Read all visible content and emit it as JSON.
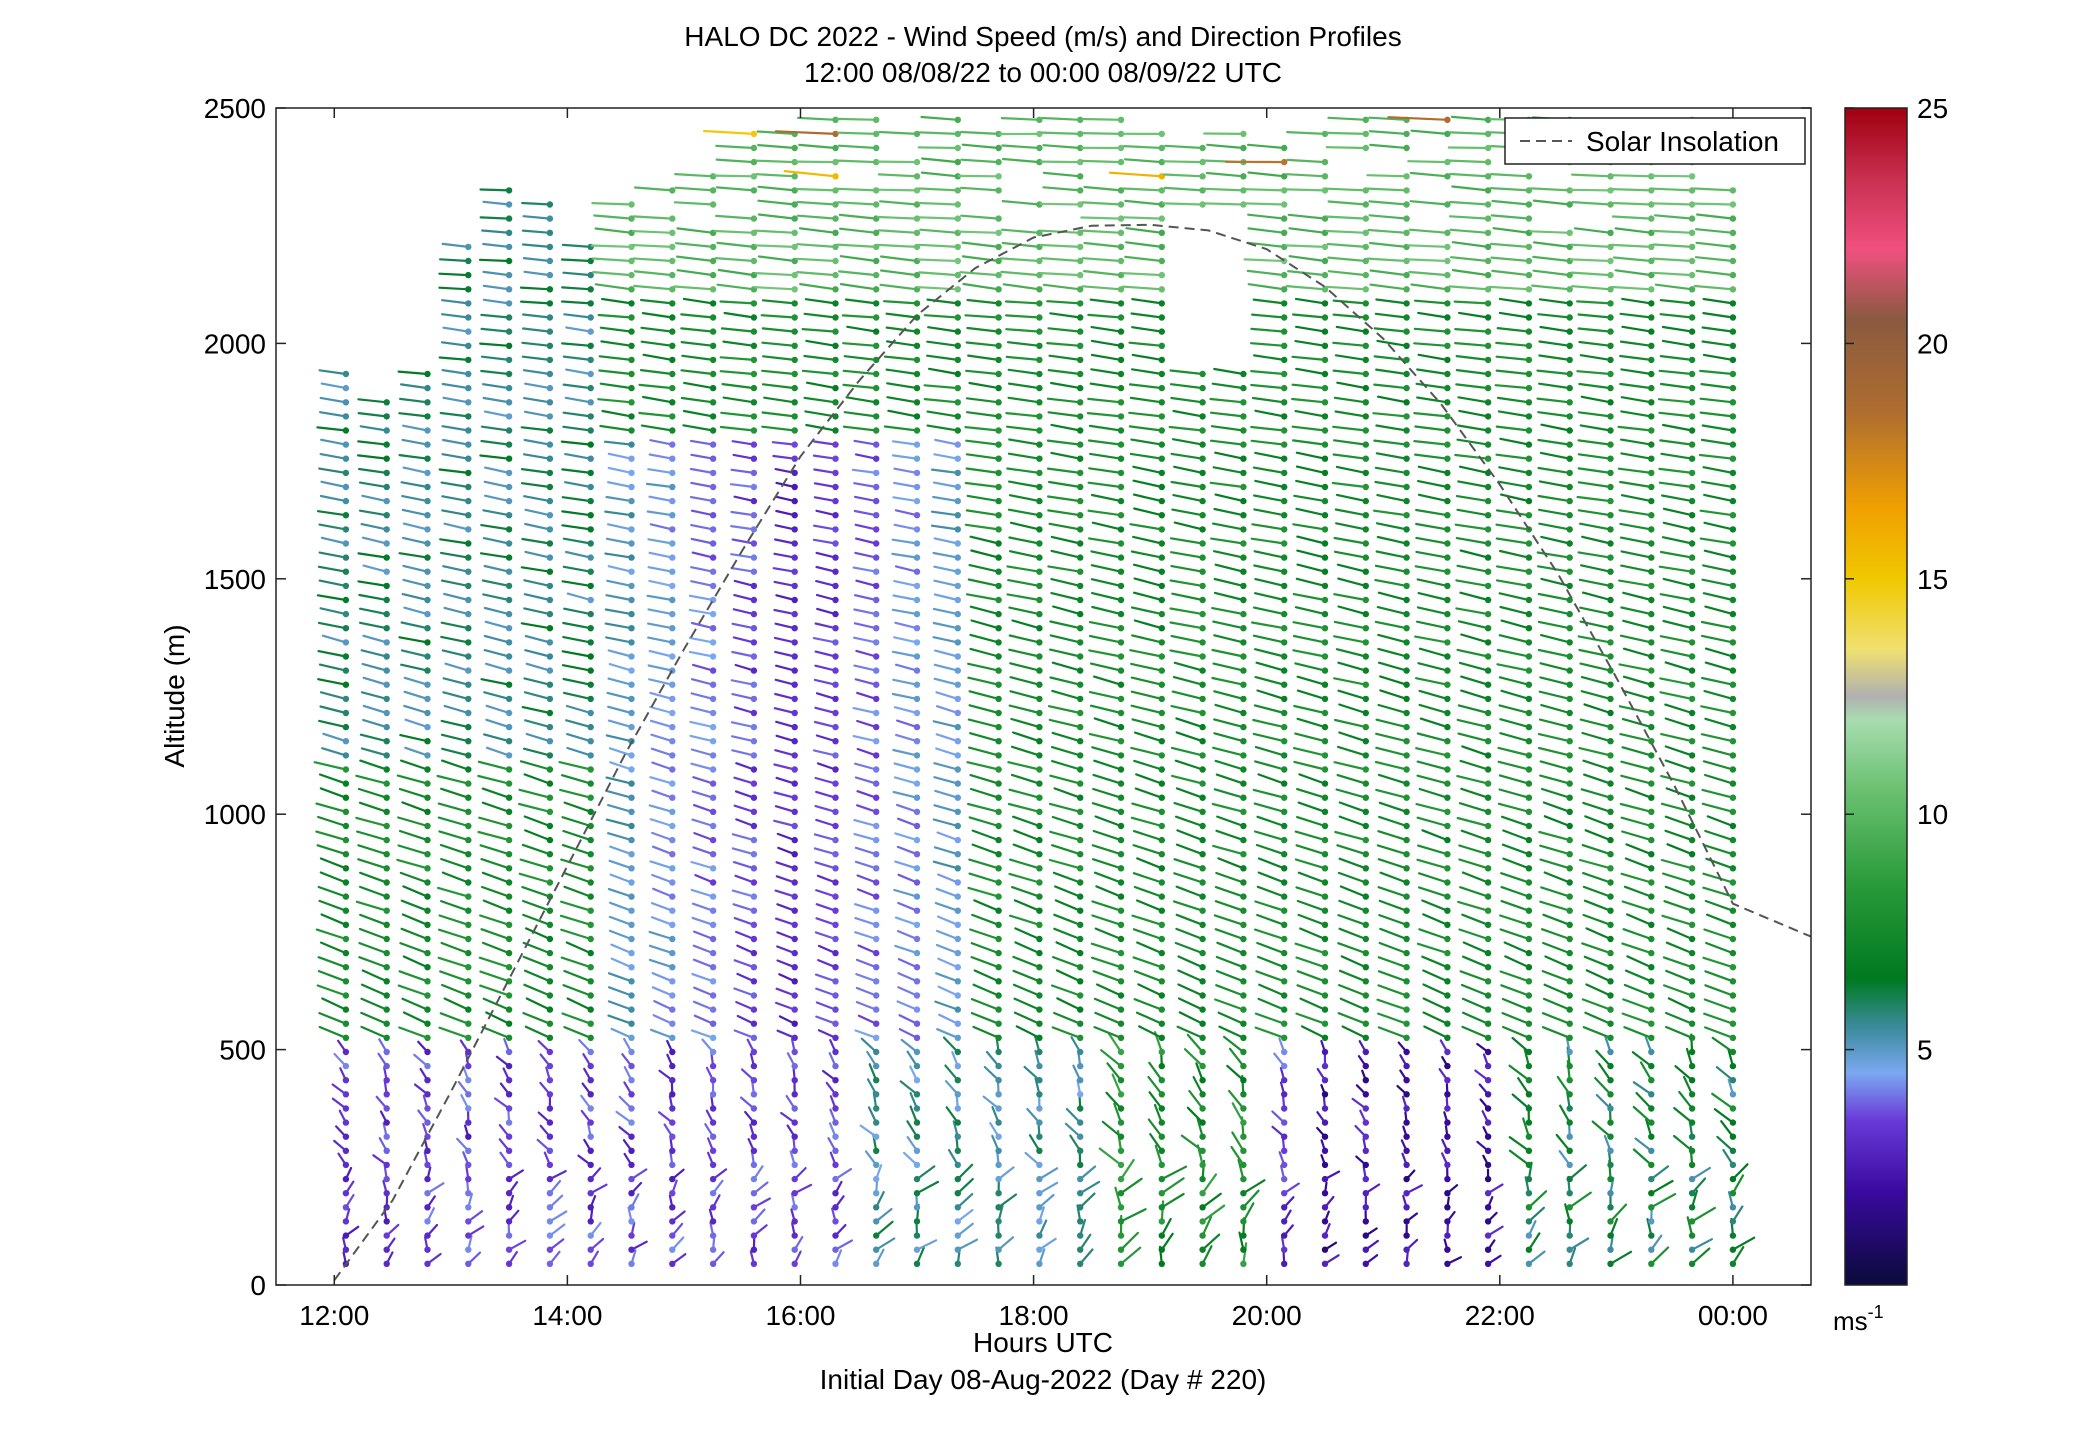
{
  "chart_data": {
    "type": "wind-barb-profile",
    "title": "HALO DC 2022 - Wind Speed (m/s) and Direction Profiles",
    "subtitle": "12:00 08/08/22 to 00:00 08/09/22  UTC",
    "xlabel": "Hours UTC",
    "xlabel2": "Initial Day 08-Aug-2022 (Day # 220)",
    "ylabel": "Altitude (m)",
    "xlim": [
      11.5,
      24.67
    ],
    "ylim": [
      0,
      2500
    ],
    "xticks": [
      12,
      14,
      16,
      18,
      20,
      22,
      24
    ],
    "xtick_labels": [
      "12:00",
      "14:00",
      "16:00",
      "18:00",
      "20:00",
      "22:00",
      "00:00"
    ],
    "yticks": [
      0,
      500,
      1000,
      1500,
      2000,
      2500
    ],
    "ytick_labels": [
      "0",
      "500",
      "1000",
      "1500",
      "2000",
      "2500"
    ],
    "legend": {
      "position": "top-right",
      "entries": [
        "Solar Insolation"
      ]
    },
    "colorbar": {
      "min": 0,
      "max": 25,
      "ticks": [
        5,
        10,
        15,
        20,
        25
      ],
      "tick_labels": [
        "5",
        "10",
        "15",
        "20",
        "25"
      ],
      "unit_base": "ms",
      "unit_exp": "-1",
      "stops": [
        [
          0.0,
          "#0a0a3a"
        ],
        [
          2.0,
          "#3a0aa0"
        ],
        [
          3.5,
          "#6a3ad8"
        ],
        [
          4.5,
          "#7aa8f0"
        ],
        [
          5.5,
          "#3a8a9a"
        ],
        [
          6.5,
          "#007a20"
        ],
        [
          8.5,
          "#2a9a3a"
        ],
        [
          10.5,
          "#6ac070"
        ],
        [
          12.0,
          "#a8dcb0"
        ],
        [
          12.5,
          "#b0b0b0"
        ],
        [
          13.5,
          "#f0e070"
        ],
        [
          15.0,
          "#f0c800"
        ],
        [
          16.5,
          "#f0a000"
        ],
        [
          18.5,
          "#b06e30"
        ],
        [
          20.5,
          "#8a5a40"
        ],
        [
          22.0,
          "#f05080"
        ],
        [
          23.5,
          "#c83050"
        ],
        [
          25.0,
          "#a00010"
        ]
      ]
    },
    "solar_insolation": {
      "x": [
        12.0,
        12.5,
        13.0,
        13.5,
        14.0,
        14.5,
        15.0,
        15.5,
        16.0,
        16.5,
        17.0,
        17.5,
        18.0,
        18.5,
        19.0,
        19.5,
        20.0,
        20.5,
        21.0,
        21.5,
        22.0,
        22.5,
        23.0,
        23.5,
        24.0,
        24.67
      ],
      "y": [
        10,
        180,
        410,
        650,
        890,
        1130,
        1350,
        1560,
        1760,
        1920,
        2060,
        2160,
        2225,
        2250,
        2252,
        2240,
        2200,
        2120,
        2010,
        1870,
        1700,
        1510,
        1290,
        1060,
        810,
        740
      ]
    },
    "profiles": {
      "times": [
        12.1,
        12.45,
        12.8,
        13.15,
        13.5,
        13.85,
        14.2,
        14.55,
        14.9,
        15.25,
        15.6,
        15.95,
        16.3,
        16.65,
        17.0,
        17.35,
        17.7,
        18.05,
        18.4,
        18.75,
        19.1,
        19.45,
        19.8,
        20.15,
        20.5,
        20.85,
        21.2,
        21.55,
        21.9,
        22.25,
        22.6,
        22.95,
        23.3,
        23.65,
        24.0
      ],
      "top_heights": [
        1960,
        1880,
        1960,
        2230,
        2400,
        2300,
        2220,
        2300,
        2350,
        2380,
        2450,
        2450,
        2500,
        2500,
        2500,
        2500,
        2470,
        2500,
        2500,
        2500,
        2460,
        2460,
        2460,
        2500,
        2500,
        2500,
        2500,
        2500,
        2500,
        2500,
        2500,
        2500,
        2500,
        2500,
        2330
      ],
      "altitude_step_m": 30,
      "min_altitude_m": 45
    }
  }
}
